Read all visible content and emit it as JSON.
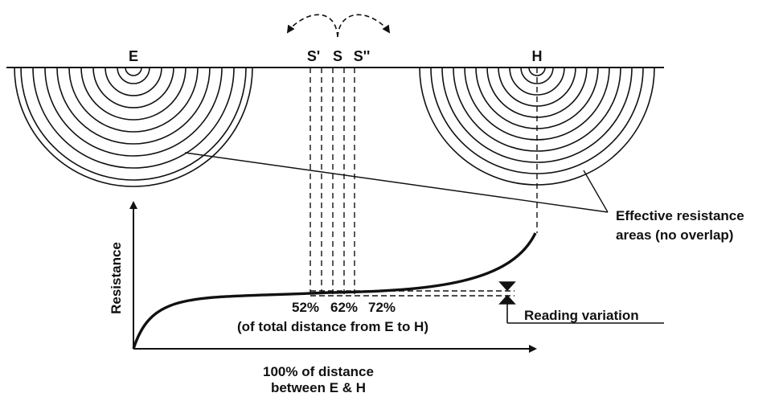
{
  "labels": {
    "electrode_e": "E",
    "electrode_h": "H",
    "probe_s_prime": "S'",
    "probe_s": "S",
    "probe_s_double_prime": "S''",
    "effective_areas_line1": "Effective resistance",
    "effective_areas_line2": "areas (no overlap)",
    "reading_variation": "Reading variation",
    "pct_52": "52%",
    "pct_62": "62%",
    "pct_72": "72%",
    "pct_caption": "(of total distance from E to H)",
    "y_axis": "Resistance",
    "x_axis_line1": "100% of distance",
    "x_axis_line2": "between E & H"
  },
  "colors": {
    "ink": "#111111",
    "background": "#ffffff"
  }
}
